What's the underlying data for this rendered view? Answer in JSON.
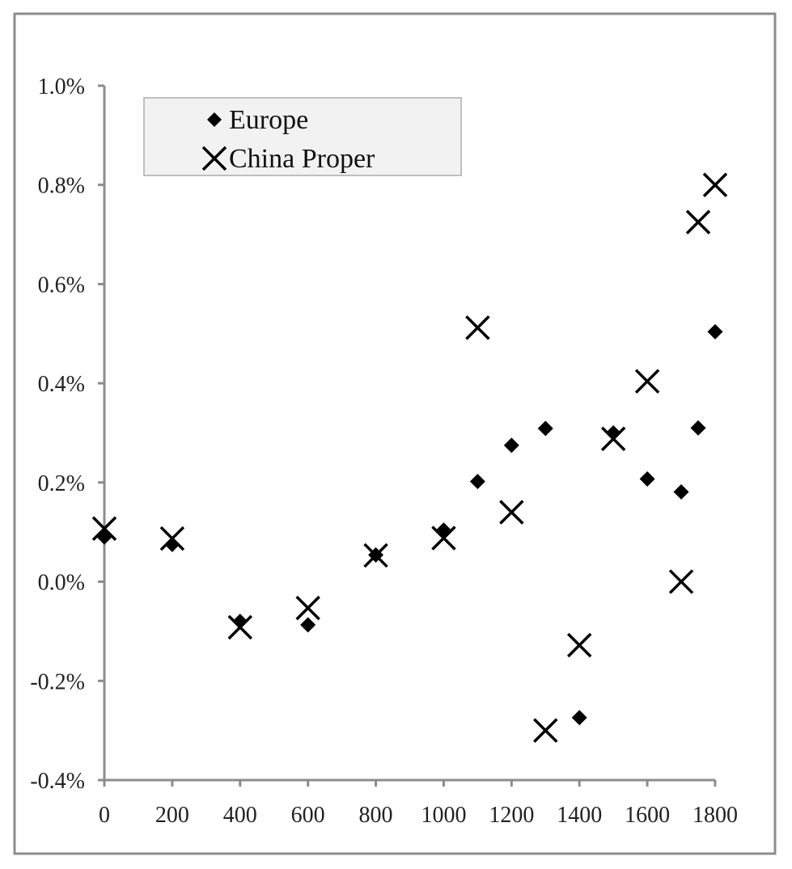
{
  "chart_data": {
    "type": "scatter",
    "title": "",
    "xlabel": "",
    "ylabel": "",
    "xlim": [
      0,
      1800
    ],
    "ylim": [
      -0.4,
      1.0
    ],
    "x_ticks": [
      "0",
      "200",
      "400",
      "600",
      "800",
      "1000",
      "1200",
      "1400",
      "1600",
      "1800"
    ],
    "y_ticks": [
      "1.0%",
      "0.8%",
      "0.6%",
      "0.4%",
      "0.2%",
      "0.0%",
      "-0.2%",
      "-0.4%"
    ],
    "grid": false,
    "legend": {
      "position": "top-left"
    },
    "series": [
      {
        "name": "Europe",
        "marker": "diamond",
        "color": "#000000",
        "points": [
          {
            "x": 0,
            "y": 0.09
          },
          {
            "x": 200,
            "y": 0.075
          },
          {
            "x": 400,
            "y": -0.08
          },
          {
            "x": 600,
            "y": -0.087
          },
          {
            "x": 800,
            "y": 0.054
          },
          {
            "x": 1000,
            "y": 0.104
          },
          {
            "x": 1100,
            "y": 0.202
          },
          {
            "x": 1200,
            "y": 0.275
          },
          {
            "x": 1300,
            "y": 0.309
          },
          {
            "x": 1400,
            "y": -0.274
          },
          {
            "x": 1500,
            "y": 0.3
          },
          {
            "x": 1600,
            "y": 0.207
          },
          {
            "x": 1700,
            "y": 0.181
          },
          {
            "x": 1750,
            "y": 0.31
          },
          {
            "x": 1800,
            "y": 0.504
          }
        ]
      },
      {
        "name": "China Proper",
        "marker": "x",
        "color": "#000000",
        "points": [
          {
            "x": 0,
            "y": 0.107
          },
          {
            "x": 200,
            "y": 0.087
          },
          {
            "x": 400,
            "y": -0.092
          },
          {
            "x": 600,
            "y": -0.053
          },
          {
            "x": 800,
            "y": 0.053
          },
          {
            "x": 1000,
            "y": 0.088
          },
          {
            "x": 1100,
            "y": 0.512
          },
          {
            "x": 1200,
            "y": 0.14
          },
          {
            "x": 1300,
            "y": -0.3
          },
          {
            "x": 1400,
            "y": -0.128
          },
          {
            "x": 1500,
            "y": 0.288
          },
          {
            "x": 1600,
            "y": 0.404
          },
          {
            "x": 1700,
            "y": 0.0
          },
          {
            "x": 1750,
            "y": 0.725
          },
          {
            "x": 1800,
            "y": 0.8
          }
        ]
      }
    ]
  }
}
